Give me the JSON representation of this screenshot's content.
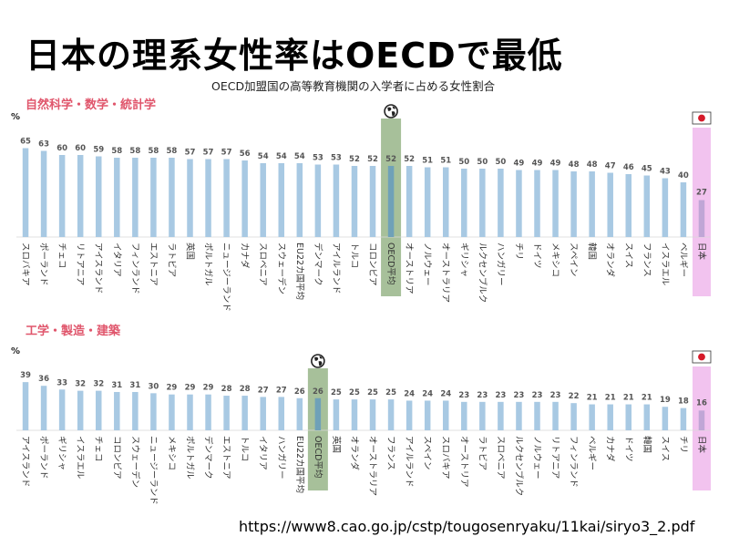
{
  "title": "日本の理系女性率はOECDで最低",
  "subtitle": "OECD加盟国の高等教育機関の入学者に占める女性割合",
  "source": "https://www8.cao.go.jp/cstp/tougosenryaku/11kai/siryo3_2.pdf",
  "colors": {
    "bar": "#a8c9e3",
    "oecd_highlight": "#a7c09a",
    "oecd_bar": "#6fa1b8",
    "japan_highlight": "#f2c3ef",
    "japan_bar": "#c0a6d6",
    "section_title": "#e0566c"
  },
  "icons": {
    "oecd_marker": "globe-icon",
    "japan_marker": "japan-flag-icon"
  },
  "chart_data": [
    {
      "type": "bar",
      "title": "自然科学・数学・統計学",
      "ylabel": "%",
      "ylim": [
        0,
        70
      ],
      "grid": false,
      "highlight": [
        "OECD平均",
        "日本"
      ],
      "categories": [
        "スロバキア",
        "ポーランド",
        "チェコ",
        "リトアニア",
        "アイスランド",
        "イタリア",
        "フィンランド",
        "エストニア",
        "ラトビア",
        "英国",
        "ポルトガル",
        "ニュージーランド",
        "カナダ",
        "スロベニア",
        "スウェーデン",
        "EU22カ国平均",
        "デンマーク",
        "アイルランド",
        "トルコ",
        "コロンビア",
        "OECD平均",
        "オーストリア",
        "ノルウェー",
        "オーストラリア",
        "ギリシャ",
        "ルクセンブルク",
        "ハンガリー",
        "チリ",
        "ドイツ",
        "メキシコ",
        "スペイン",
        "韓国",
        "オランダ",
        "スイス",
        "フランス",
        "イスラエル",
        "ベルギー",
        "日本"
      ],
      "values": [
        65,
        63,
        60,
        60,
        59,
        58,
        58,
        58,
        58,
        57,
        57,
        57,
        56,
        54,
        54,
        54,
        53,
        53,
        52,
        52,
        52,
        52,
        51,
        51,
        50,
        50,
        50,
        49,
        49,
        49,
        48,
        48,
        47,
        46,
        45,
        43,
        40,
        27
      ]
    },
    {
      "type": "bar",
      "title": "工学・製造・建築",
      "ylabel": "%",
      "ylim": [
        0,
        45
      ],
      "grid": false,
      "highlight": [
        "OECD平均",
        "日本"
      ],
      "categories": [
        "アイスランド",
        "ポーランド",
        "ギリシャ",
        "イスラエル",
        "チェコ",
        "コロンビア",
        "スウェーデン",
        "ニュージーランド",
        "メキシコ",
        "ポルトガル",
        "デンマーク",
        "エストニア",
        "トルコ",
        "イタリア",
        "ハンガリー",
        "EU22カ国平均",
        "OECD平均",
        "英国",
        "オランダ",
        "オーストラリア",
        "フランス",
        "アイルランド",
        "スペイン",
        "スロバキア",
        "オーストリア",
        "ラトビア",
        "スロベニア",
        "ルクセンブルク",
        "ノルウェー",
        "リトアニア",
        "フィンランド",
        "ベルギー",
        "カナダ",
        "ドイツ",
        "韓国",
        "スイス",
        "チリ",
        "日本"
      ],
      "values": [
        39,
        36,
        33,
        32,
        32,
        31,
        31,
        30,
        29,
        29,
        29,
        28,
        28,
        27,
        27,
        26,
        26,
        25,
        25,
        25,
        25,
        24,
        24,
        24,
        23,
        23,
        23,
        23,
        23,
        23,
        22,
        21,
        21,
        21,
        21,
        19,
        18,
        16
      ]
    }
  ]
}
